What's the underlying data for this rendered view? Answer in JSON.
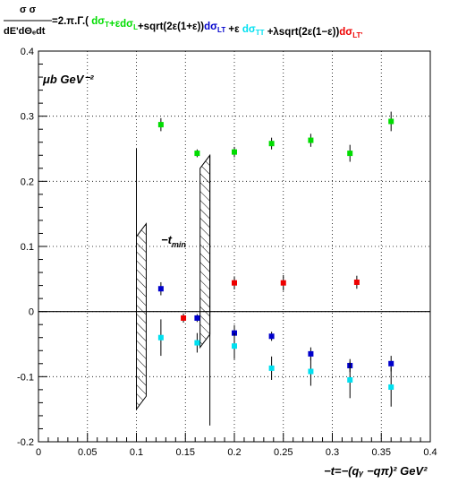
{
  "chart_data": {
    "type": "scatter",
    "title": {
      "lhs_numerator": "σ σ",
      "lhs_denominator": "dE'dΘₑdt",
      "rhs_prefix": "=2.π.Γ.(",
      "terms": [
        {
          "text": "dσ",
          "sub": "T",
          "color": "#00dd00"
        },
        {
          "text": "+εdσ",
          "sub": "L",
          "color": "#00dd00"
        },
        {
          "text": "+sqrt(2ε(1+ε))",
          "sub": "",
          "color": "#000000"
        },
        {
          "text": "dσ",
          "sub": "LT",
          "color": "#0000cc"
        },
        {
          "text": " +ε ",
          "sub": "",
          "color": "#000000"
        },
        {
          "text": "dσ",
          "sub": "TT",
          "color": "#00e0f0"
        },
        {
          "text": " +λsqrt(2ε(1−ε))",
          "sub": "",
          "color": "#000000"
        },
        {
          "text": "dσ",
          "sub": "LT'",
          "color": "#ee0000"
        }
      ]
    },
    "ylabel": "μb GeV⁻²",
    "xlabel": "−t=−(qᵧ −qπ)² GeV²",
    "xlim": [
      0,
      0.4
    ],
    "ylim": [
      -0.2,
      0.4
    ],
    "x_ticks": [
      "0",
      "0.05",
      "0.1",
      "0.15",
      "0.2",
      "0.25",
      "0.3",
      "0.35",
      "0.4"
    ],
    "x_tick_values": [
      0,
      0.05,
      0.1,
      0.15,
      0.2,
      0.25,
      0.3,
      0.35,
      0.4
    ],
    "y_ticks": [
      "-0.2",
      "-0.1",
      "0",
      "0.1",
      "0.2",
      "0.3",
      "0.4"
    ],
    "y_tick_values": [
      -0.2,
      -0.1,
      0,
      0.1,
      0.2,
      0.3,
      0.4
    ],
    "grid": true,
    "annotation": {
      "text": "−t",
      "sub": "min"
    },
    "tmin_bands": [
      {
        "x0": 0.1,
        "x1": 0.11,
        "ytop": 0.135,
        "ybottom": -0.15,
        "line_top": 0.25
      },
      {
        "x0": 0.165,
        "x1": 0.175,
        "ytop": 0.24,
        "ybottom": -0.055,
        "line_bottom": -0.175
      }
    ],
    "series": [
      {
        "id": "sigT_plus_epsL",
        "color": "#00dd00",
        "points": [
          {
            "x": 0.125,
            "y": 0.287,
            "err": 0.01
          },
          {
            "x": 0.162,
            "y": 0.243,
            "err": 0.006
          },
          {
            "x": 0.2,
            "y": 0.245,
            "err": 0.008
          },
          {
            "x": 0.238,
            "y": 0.258,
            "err": 0.009
          },
          {
            "x": 0.278,
            "y": 0.263,
            "err": 0.01
          },
          {
            "x": 0.318,
            "y": 0.243,
            "err": 0.013
          },
          {
            "x": 0.36,
            "y": 0.292,
            "err": 0.015
          }
        ]
      },
      {
        "id": "sigLT",
        "color": "#0000cc",
        "points": [
          {
            "x": 0.125,
            "y": 0.035,
            "err": 0.01
          },
          {
            "x": 0.162,
            "y": -0.01,
            "err": 0.006
          },
          {
            "x": 0.2,
            "y": -0.033,
            "err": 0.012
          },
          {
            "x": 0.238,
            "y": -0.038,
            "err": 0.007
          },
          {
            "x": 0.278,
            "y": -0.065,
            "err": 0.01
          },
          {
            "x": 0.318,
            "y": -0.083,
            "err": 0.01
          },
          {
            "x": 0.36,
            "y": -0.08,
            "err": 0.012
          }
        ]
      },
      {
        "id": "sigTT",
        "color": "#00e0f0",
        "points": [
          {
            "x": 0.125,
            "y": -0.04,
            "err": 0.028
          },
          {
            "x": 0.162,
            "y": -0.048,
            "err": 0.015
          },
          {
            "x": 0.2,
            "y": -0.053,
            "err": 0.02
          },
          {
            "x": 0.238,
            "y": -0.087,
            "err": 0.018
          },
          {
            "x": 0.278,
            "y": -0.092,
            "err": 0.022
          },
          {
            "x": 0.318,
            "y": -0.105,
            "err": 0.028
          },
          {
            "x": 0.36,
            "y": -0.116,
            "err": 0.03
          }
        ]
      },
      {
        "id": "sigLTprime",
        "color": "#ee0000",
        "points": [
          {
            "x": 0.148,
            "y": -0.01,
            "err": 0.007
          },
          {
            "x": 0.2,
            "y": 0.044,
            "err": 0.01
          },
          {
            "x": 0.25,
            "y": 0.044,
            "err": 0.012
          },
          {
            "x": 0.325,
            "y": 0.045,
            "err": 0.01
          }
        ]
      }
    ]
  }
}
